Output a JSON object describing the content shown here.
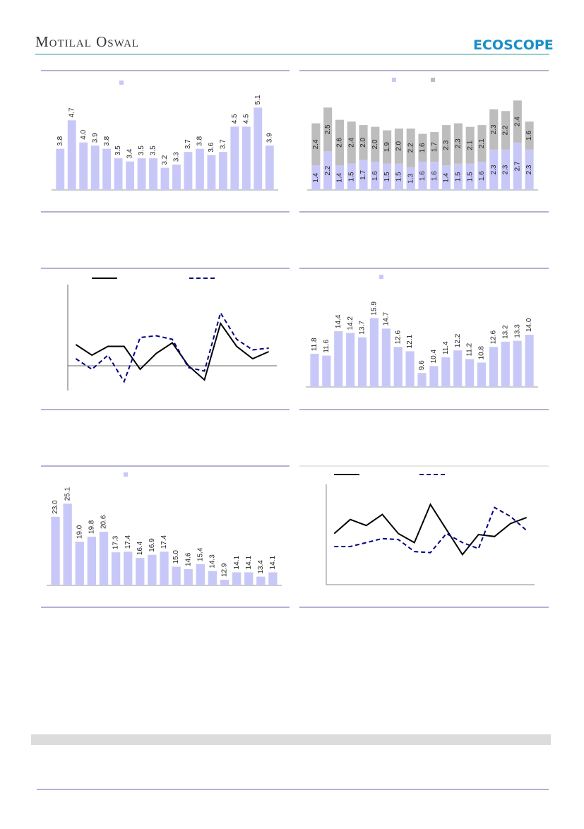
{
  "header": {
    "brand": "Motilal Oswal",
    "logo": "ECOSCOPE"
  },
  "chart_data": [
    {
      "type": "bar",
      "color": "#c8c8f8",
      "ylim": [
        2.5,
        6
      ],
      "values": [
        3.8,
        4.7,
        4.0,
        3.9,
        3.8,
        3.5,
        3.4,
        3.5,
        3.5,
        3.2,
        3.3,
        3.7,
        3.8,
        3.6,
        3.7,
        4.5,
        4.5,
        5.1,
        3.9
      ],
      "value_labels": [
        "3.8",
        "4.7",
        "4.0",
        "3.9",
        "3.8",
        "3.5",
        "3.4",
        "3.5",
        "3.5",
        "3.2",
        "3.3",
        "3.7",
        "3.8",
        "3.6",
        "3.7",
        "4.5",
        "4.5",
        "5.1",
        "3.9"
      ]
    },
    {
      "type": "bar",
      "stacked": true,
      "ylim": [
        0,
        6
      ],
      "series": [
        {
          "color": "#c8c8f8",
          "values": [
            1.4,
            2.2,
            1.4,
            1.5,
            1.7,
            1.6,
            1.5,
            1.5,
            1.3,
            1.6,
            1.6,
            1.4,
            1.5,
            1.5,
            1.6,
            2.3,
            2.3,
            2.7,
            2.3
          ],
          "value_labels": [
            "1.4",
            "2.2",
            "1.4",
            "1.5",
            "1.7",
            "1.6",
            "1.5",
            "1.5",
            "1.3",
            "1.6",
            "1.6",
            "1.4",
            "1.5",
            "1.5",
            "1.6",
            "2.3",
            "2.3",
            "2.7",
            "2.3"
          ]
        },
        {
          "color": "#bdbdbd",
          "values": [
            2.4,
            2.5,
            2.6,
            2.4,
            2.0,
            2.0,
            1.9,
            2.0,
            2.2,
            1.6,
            1.7,
            2.3,
            2.3,
            2.1,
            2.1,
            2.3,
            2.2,
            2.4,
            1.6
          ],
          "value_labels": [
            "2.4",
            "2.5",
            "2.6",
            "2.4",
            "2.0",
            "2.0",
            "1.9",
            "2.0",
            "2.2",
            "1.6",
            "1.7",
            "2.3",
            "2.3",
            "2.1",
            "2.1",
            "2.3",
            "2.2",
            "2.4",
            "1.6"
          ]
        }
      ]
    },
    {
      "type": "line",
      "ylim": [
        -1.4,
        4.6
      ],
      "series": [
        {
          "color": "#000000",
          "dash": false,
          "values": [
            1.2,
            0.6,
            1.1,
            1.1,
            -0.2,
            0.7,
            1.3,
            0.0,
            -0.8,
            2.4,
            1.1,
            0.4,
            0.8
          ]
        },
        {
          "color": "#000080",
          "dash": true,
          "values": [
            0.4,
            -0.2,
            0.6,
            -0.9,
            1.6,
            1.7,
            1.5,
            -0.1,
            -0.3,
            3.0,
            1.5,
            0.9,
            1.0
          ]
        }
      ]
    },
    {
      "type": "bar",
      "color": "#c8c8f8",
      "ylim": [
        8,
        20
      ],
      "values": [
        11.8,
        11.6,
        14.4,
        14.2,
        13.7,
        15.9,
        14.7,
        12.6,
        12.1,
        9.6,
        10.4,
        11.4,
        12.2,
        11.2,
        10.8,
        12.6,
        13.2,
        13.3,
        14.0
      ],
      "value_labels": [
        "11.8",
        "11.6",
        "14.4",
        "14.2",
        "13.7",
        "15.9",
        "14.7",
        "12.6",
        "12.1",
        "9.6",
        "10.4",
        "11.4",
        "12.2",
        "11.2",
        "10.8",
        "12.6",
        "13.2",
        "13.3",
        "14.0"
      ]
    },
    {
      "type": "bar",
      "color": "#c8c8f8",
      "ylim": [
        12,
        30
      ],
      "values": [
        23.0,
        25.1,
        19.0,
        19.8,
        20.6,
        17.3,
        17.4,
        16.4,
        16.9,
        17.4,
        15.0,
        14.6,
        15.4,
        14.3,
        12.9,
        14.1,
        14.1,
        13.4,
        14.1
      ],
      "value_labels": [
        "23.0",
        "25.1",
        "19.0",
        "19.8",
        "20.6",
        "17.3",
        "17.4",
        "16.4",
        "16.9",
        "17.4",
        "15.0",
        "14.6",
        "15.4",
        "14.3",
        "12.9",
        "14.1",
        "14.1",
        "13.4",
        "14.1"
      ]
    },
    {
      "type": "line",
      "ylim": [
        0,
        10
      ],
      "series": [
        {
          "color": "#000000",
          "dash": false,
          "values": [
            5.1,
            6.5,
            5.9,
            7.0,
            5.1,
            4.2,
            8.0,
            5.5,
            3.0,
            5.0,
            4.8,
            6.1,
            6.7
          ]
        },
        {
          "color": "#000080",
          "dash": true,
          "values": [
            3.8,
            3.8,
            4.2,
            4.6,
            4.5,
            3.3,
            3.2,
            5.1,
            4.2,
            3.6,
            7.7,
            6.8,
            5.4
          ]
        }
      ]
    }
  ]
}
